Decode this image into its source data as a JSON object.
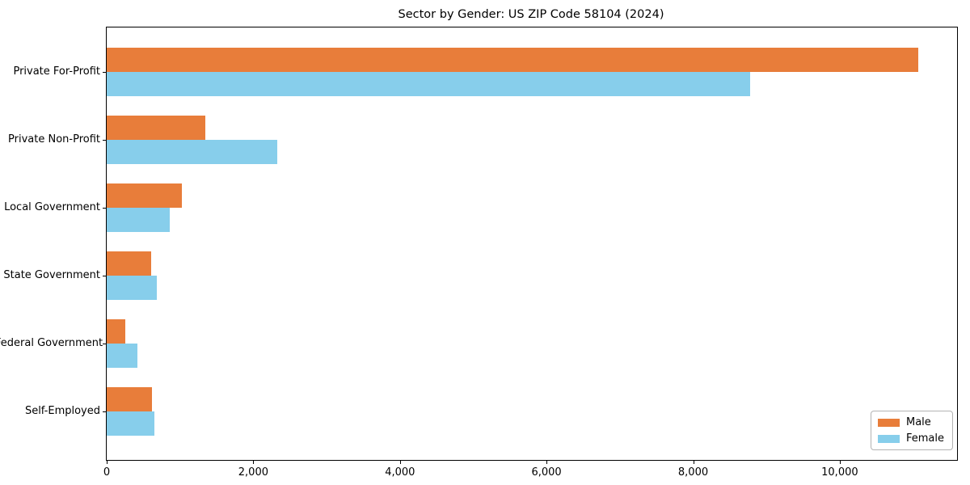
{
  "chart_data": {
    "type": "bar",
    "orientation": "horizontal",
    "title": "Sector by Gender: US ZIP Code 58104 (2024)",
    "categories": [
      "Private For-Profit",
      "Private Non-Profit",
      "Local Government",
      "State Government",
      "Federal Government",
      "Self-Employed"
    ],
    "series": [
      {
        "name": "Male",
        "color": "#e87d3a",
        "values": [
          11070,
          1350,
          1030,
          610,
          250,
          615
        ]
      },
      {
        "name": "Female",
        "color": "#87ceeb",
        "values": [
          8780,
          2330,
          860,
          680,
          420,
          645
        ]
      }
    ],
    "xlim": [
      0,
      11600
    ],
    "x_ticks": [
      {
        "value": 0,
        "label": "0"
      },
      {
        "value": 2000,
        "label": "2,000"
      },
      {
        "value": 4000,
        "label": "4,000"
      },
      {
        "value": 6000,
        "label": "6,000"
      },
      {
        "value": 8000,
        "label": "8,000"
      },
      {
        "value": 10000,
        "label": "10,000"
      }
    ],
    "legend": {
      "position": "lower right"
    },
    "grid": false,
    "background_color": "#ffffff",
    "frame_color": "#000000"
  }
}
